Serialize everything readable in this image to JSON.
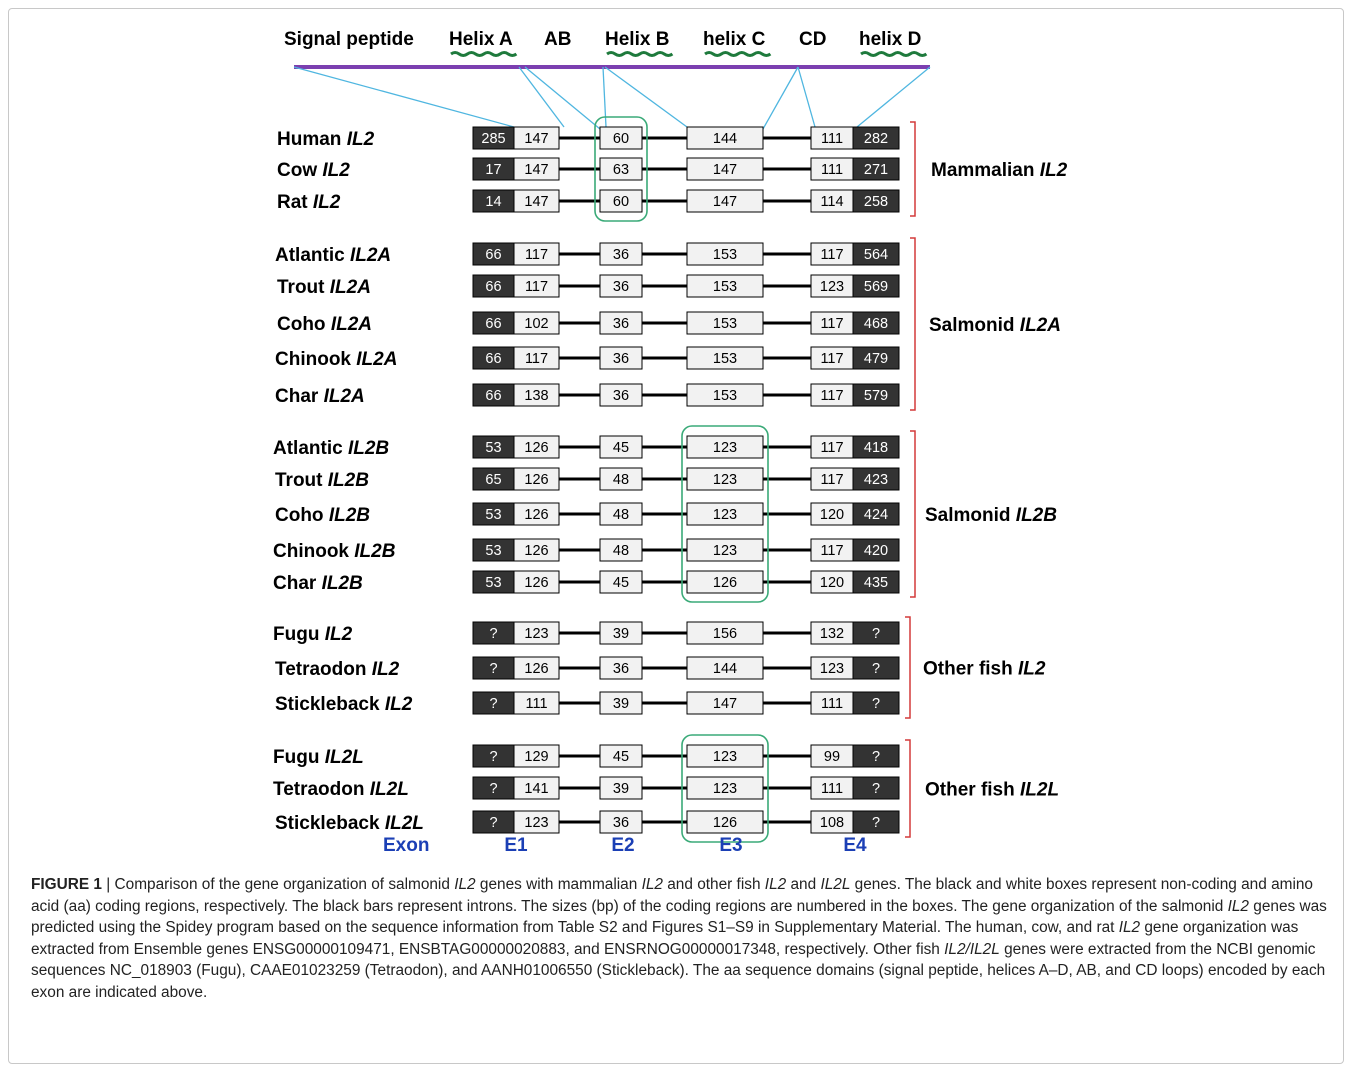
{
  "domains": [
    {
      "label": "Signal peptide",
      "helix": false
    },
    {
      "label": "Helix A",
      "helix": true
    },
    {
      "label": "AB",
      "helix": false
    },
    {
      "label": "Helix B",
      "helix": true
    },
    {
      "label": "helix C",
      "helix": true
    },
    {
      "label": "CD",
      "helix": false
    },
    {
      "label": "helix D",
      "helix": true
    }
  ],
  "genes": [
    {
      "species": "Human",
      "gene": "IL2",
      "e1nc": "285",
      "e1c": "147",
      "e2": "60",
      "e3": "144",
      "e4c": "111",
      "e4nc": "282"
    },
    {
      "species": "Cow",
      "gene": "IL2",
      "e1nc": "17",
      "e1c": "147",
      "e2": "63",
      "e3": "147",
      "e4c": "111",
      "e4nc": "271"
    },
    {
      "species": "Rat",
      "gene": "IL2",
      "e1nc": "14",
      "e1c": "147",
      "e2": "60",
      "e3": "147",
      "e4c": "114",
      "e4nc": "258"
    },
    {
      "species": "Atlantic",
      "gene": "IL2A",
      "e1nc": "66",
      "e1c": "117",
      "e2": "36",
      "e3": "153",
      "e4c": "117",
      "e4nc": "564"
    },
    {
      "species": "Trout",
      "gene": "IL2A",
      "e1nc": "66",
      "e1c": "117",
      "e2": "36",
      "e3": "153",
      "e4c": "123",
      "e4nc": "569"
    },
    {
      "species": "Coho",
      "gene": "IL2A",
      "e1nc": "66",
      "e1c": "102",
      "e2": "36",
      "e3": "153",
      "e4c": "117",
      "e4nc": "468"
    },
    {
      "species": "Chinook",
      "gene": "IL2A",
      "e1nc": "66",
      "e1c": "117",
      "e2": "36",
      "e3": "153",
      "e4c": "117",
      "e4nc": "479"
    },
    {
      "species": "Char",
      "gene": "IL2A",
      "e1nc": "66",
      "e1c": "138",
      "e2": "36",
      "e3": "153",
      "e4c": "117",
      "e4nc": "579"
    },
    {
      "species": "Atlantic",
      "gene": "IL2B",
      "e1nc": "53",
      "e1c": "126",
      "e2": "45",
      "e3": "123",
      "e4c": "117",
      "e4nc": "418"
    },
    {
      "species": "Trout",
      "gene": "IL2B",
      "e1nc": "65",
      "e1c": "126",
      "e2": "48",
      "e3": "123",
      "e4c": "117",
      "e4nc": "423"
    },
    {
      "species": "Coho",
      "gene": "IL2B",
      "e1nc": "53",
      "e1c": "126",
      "e2": "48",
      "e3": "123",
      "e4c": "120",
      "e4nc": "424"
    },
    {
      "species": "Chinook",
      "gene": "IL2B",
      "e1nc": "53",
      "e1c": "126",
      "e2": "48",
      "e3": "123",
      "e4c": "117",
      "e4nc": "420"
    },
    {
      "species": "Char",
      "gene": "IL2B",
      "e1nc": "53",
      "e1c": "126",
      "e2": "45",
      "e3": "126",
      "e4c": "120",
      "e4nc": "435"
    },
    {
      "species": "Fugu",
      "gene": "IL2",
      "e1nc": "?",
      "e1c": "123",
      "e2": "39",
      "e3": "156",
      "e4c": "132",
      "e4nc": "?"
    },
    {
      "species": "Tetraodon",
      "gene": "IL2",
      "e1nc": "?",
      "e1c": "126",
      "e2": "36",
      "e3": "144",
      "e4c": "123",
      "e4nc": "?"
    },
    {
      "species": "Stickleback",
      "gene": "IL2",
      "e1nc": "?",
      "e1c": "111",
      "e2": "39",
      "e3": "147",
      "e4c": "111",
      "e4nc": "?"
    },
    {
      "species": "Fugu",
      "gene": "IL2L",
      "e1nc": "?",
      "e1c": "129",
      "e2": "45",
      "e3": "123",
      "e4c": "99",
      "e4nc": "?"
    },
    {
      "species": "Tetraodon",
      "gene": "IL2L",
      "e1nc": "?",
      "e1c": "141",
      "e2": "39",
      "e3": "123",
      "e4c": "111",
      "e4nc": "?"
    },
    {
      "species": "Stickleback",
      "gene": "IL2L",
      "e1nc": "?",
      "e1c": "123",
      "e2": "36",
      "e3": "126",
      "e4c": "108",
      "e4nc": "?"
    }
  ],
  "groups": [
    {
      "prefix": "Mammalian ",
      "gene": "IL2",
      "first": 0,
      "last": 2
    },
    {
      "prefix": "Salmonid ",
      "gene": "IL2A",
      "first": 3,
      "last": 7
    },
    {
      "prefix": "Salmonid ",
      "gene": "IL2B",
      "first": 8,
      "last": 12
    },
    {
      "prefix": "Other fish ",
      "gene": "IL2",
      "first": 13,
      "last": 15
    },
    {
      "prefix": "Other fish ",
      "gene": "IL2L",
      "first": 16,
      "last": 18
    }
  ],
  "exon_axis": {
    "label": "Exon",
    "exons": [
      "E1",
      "E2",
      "E3",
      "E4"
    ]
  },
  "colors": {
    "noncoding": "#333333",
    "coding": "#f2f2f2",
    "highlight": "#3aaa78",
    "bracket": "#d43a3a",
    "mapping": "#4fb6e0",
    "domain_bar": "#7b3fb0",
    "helix": "#1e7a3c",
    "exon_text": "#1b3fb5"
  },
  "caption": {
    "figure_label": "FIGURE 1",
    "segments": [
      {
        "t": " | Comparison of the gene organization of salmonid ",
        "i": false
      },
      {
        "t": "IL2",
        "i": true
      },
      {
        "t": " genes with mammalian ",
        "i": false
      },
      {
        "t": "IL2",
        "i": true
      },
      {
        "t": " and other fish ",
        "i": false
      },
      {
        "t": "IL2",
        "i": true
      },
      {
        "t": " and ",
        "i": false
      },
      {
        "t": "IL2L",
        "i": true
      },
      {
        "t": " genes. The black and white boxes represent non-coding and amino acid (aa) coding regions, respectively. The black bars represent introns. The sizes (bp) of the coding regions are numbered in the boxes. The gene organization of the salmonid ",
        "i": false
      },
      {
        "t": "IL2",
        "i": true
      },
      {
        "t": " genes was predicted using the Spidey program based on the sequence information from Table S2 and Figures S1–S9 in Supplementary Material. The human, cow, and rat ",
        "i": false
      },
      {
        "t": "IL2",
        "i": true
      },
      {
        "t": " gene organization was extracted from Ensemble genes ENSG00000109471, ENSBTAG00000020883, and ENSRNOG00000017348, respectively. Other fish ",
        "i": false
      },
      {
        "t": "IL2/IL2L",
        "i": true
      },
      {
        "t": " genes were extracted from the NCBI genomic sequences NC_018903 (Fugu), CAAE01023259 (Tetraodon), and AANH01006550 (Stickleback). The aa sequence domains (signal peptide, helices A–D, AB, and CD loops) encoded by each exon are indicated above.",
        "i": false
      }
    ]
  }
}
